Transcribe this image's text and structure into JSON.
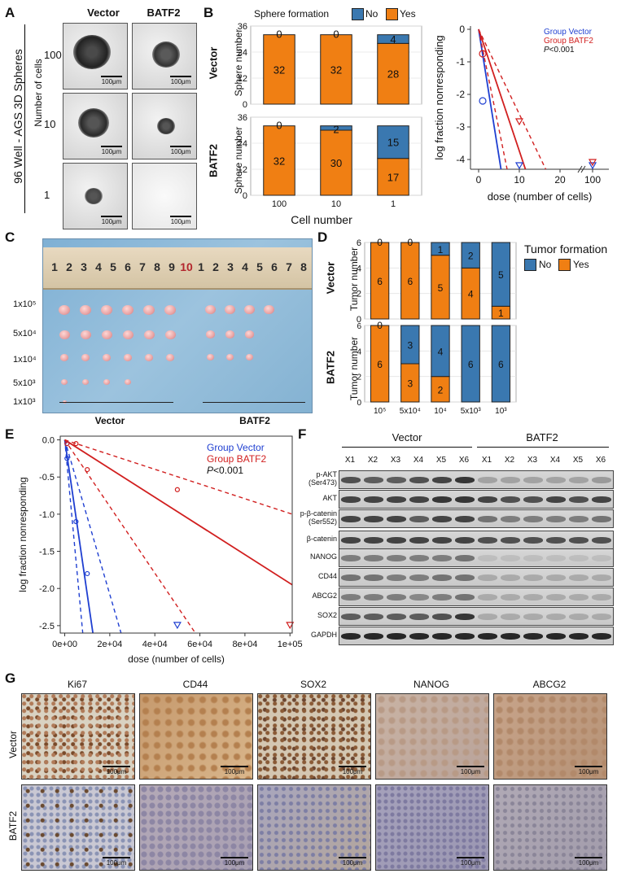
{
  "panels": {
    "A": {
      "letter": "A",
      "col_vector": "Vector",
      "col_batf2": "BATF2",
      "side_title": "96 Well - AGS 3D Spheres",
      "side_sub": "Number of cells",
      "rows": [
        "100",
        "10",
        "1"
      ],
      "scale": "100μm"
    },
    "B": {
      "letter": "B",
      "legend_title": "Sphere formation",
      "legend_no": "No",
      "legend_yes": "Yes",
      "ylabel": "Sphere number",
      "xlabel": "Cell number",
      "row_vector": "Vector",
      "row_batf2": "BATF2"
    },
    "C": {
      "letter": "C",
      "rows": [
        "1x10⁵",
        "5x10⁴",
        "1x10⁴",
        "5x10³",
        "1x10³"
      ],
      "group_vector": "Vector",
      "group_batf2": "BATF2",
      "ruler_ticks": [
        "1",
        "2",
        "3",
        "4",
        "5",
        "6",
        "7",
        "8",
        "9",
        "10",
        "1",
        "2",
        "3",
        "4",
        "5",
        "6",
        "7",
        "8"
      ]
    },
    "D": {
      "letter": "D",
      "legend_title": "Tumor formation",
      "legend_no": "No",
      "legend_yes": "Yes",
      "ylabel": "Tumor number",
      "row_vector": "Vector",
      "row_batf2": "BATF2"
    },
    "E": {
      "letter": "E"
    },
    "F": {
      "letter": "F",
      "group_vector": "Vector",
      "group_batf2": "BATF2",
      "lanes": [
        "X1",
        "X2",
        "X3",
        "X4",
        "X5",
        "X6",
        "X1",
        "X2",
        "X3",
        "X4",
        "X5",
        "X6"
      ],
      "proteins": [
        "p-AKT\n(Ser473)",
        "AKT",
        "p-β-catenin\n(Ser552)",
        "β-catenin",
        "NANOG",
        "CD44",
        "ABCG2",
        "SOX2",
        "GAPDH"
      ]
    },
    "G": {
      "letter": "G",
      "markers": [
        "Ki67",
        "CD44",
        "SOX2",
        "NANOG",
        "ABCG2"
      ],
      "row_vector": "Vector",
      "row_batf2": "BATF2",
      "scale": "100μm"
    }
  },
  "colors": {
    "no": "#3a78b0",
    "yes": "#f07f13",
    "vector_line": "#1f3fd1",
    "batf2_line": "#d11f1f"
  },
  "chart_data": [
    {
      "id": "B-vector",
      "type": "bar",
      "stacked": true,
      "title": "Vector",
      "categories": [
        "100",
        "10",
        "1"
      ],
      "series": [
        {
          "name": "Yes",
          "values": [
            32,
            32,
            28
          ]
        },
        {
          "name": "No",
          "values": [
            0,
            0,
            4
          ]
        }
      ],
      "ylabel": "Sphere number",
      "ylim": [
        0,
        36
      ],
      "yticks": [
        0,
        12,
        24,
        36
      ]
    },
    {
      "id": "B-batf2",
      "type": "bar",
      "stacked": true,
      "title": "BATF2",
      "categories": [
        "100",
        "10",
        "1"
      ],
      "series": [
        {
          "name": "Yes",
          "values": [
            32,
            30,
            17
          ]
        },
        {
          "name": "No",
          "values": [
            0,
            2,
            15
          ]
        }
      ],
      "xlabel": "Cell number",
      "ylabel": "Sphere number",
      "ylim": [
        0,
        36
      ],
      "yticks": [
        0,
        12,
        24,
        36
      ]
    },
    {
      "id": "B-elda",
      "type": "line",
      "xlabel": "dose (number of cells)",
      "ylabel": "log fraction nonresponding",
      "legend": [
        "Group Vector",
        "Group BATF2"
      ],
      "pvalue_label": "P",
      "pvalue": "<0.001",
      "xticks": [
        "0",
        "10",
        "20",
        "100"
      ],
      "yticks": [
        0,
        -1,
        -2,
        -3,
        -4
      ],
      "xlim": [
        0,
        100
      ],
      "ylim": [
        -4.3,
        0.1
      ],
      "vector_points": [
        {
          "x": 1,
          "y": -2.2
        },
        {
          "x": 10,
          "y": -4.2
        },
        {
          "x": 100,
          "y": -4.2
        }
      ],
      "batf2_points": [
        {
          "x": 1,
          "y": -0.75
        },
        {
          "x": 10,
          "y": -2.85
        },
        {
          "x": 100,
          "y": -4.1
        }
      ],
      "vector_fit": [
        {
          "x": 0,
          "y": 0
        },
        {
          "x": 5.5,
          "y": -4.3
        }
      ],
      "batf2_fit": [
        {
          "x": 0,
          "y": 0
        },
        {
          "x": 11.5,
          "y": -4.3
        }
      ],
      "batf2_ci_lo": [
        {
          "x": 0,
          "y": 0
        },
        {
          "x": 7,
          "y": -4.3
        }
      ],
      "batf2_ci_hi": [
        {
          "x": 0,
          "y": 0
        },
        {
          "x": 16.5,
          "y": -4.3
        }
      ]
    },
    {
      "id": "D-vector",
      "type": "bar",
      "stacked": true,
      "title": "Vector",
      "categories": [
        "10⁵",
        "5x10⁴",
        "10⁴",
        "5x10³",
        "10³"
      ],
      "series": [
        {
          "name": "Yes",
          "values": [
            6,
            6,
            5,
            4,
            1
          ]
        },
        {
          "name": "No",
          "values": [
            0,
            0,
            1,
            2,
            5
          ]
        }
      ],
      "ylabel": "Tumor number",
      "ylim": [
        0,
        6
      ],
      "yticks": [
        0,
        2,
        4,
        6
      ]
    },
    {
      "id": "D-batf2",
      "type": "bar",
      "stacked": true,
      "title": "BATF2",
      "categories": [
        "10⁵",
        "5x10⁴",
        "10⁴",
        "5x10³",
        "10³"
      ],
      "series": [
        {
          "name": "Yes",
          "values": [
            6,
            3,
            2,
            0,
            0
          ]
        },
        {
          "name": "No",
          "values": [
            0,
            3,
            4,
            6,
            6
          ]
        }
      ],
      "ylabel": "Tumor number",
      "ylim": [
        0,
        6
      ],
      "yticks": [
        0,
        2,
        4,
        6
      ]
    },
    {
      "id": "E-elda",
      "type": "line",
      "xlabel": "dose (number of cells)",
      "ylabel": "log fraction nonresponding",
      "legend": [
        "Group Vector",
        "Group BATF2"
      ],
      "pvalue_label": "P",
      "pvalue": "<0.001",
      "xticks": [
        "0e+00",
        "2e+04",
        "4e+04",
        "6e+04",
        "8e+04",
        "1e+05"
      ],
      "xtick_values": [
        0,
        20000,
        40000,
        60000,
        80000,
        100000
      ],
      "yticks": [
        "0.0",
        "-0.5",
        "-1.0",
        "-1.5",
        "-2.0",
        "-2.5"
      ],
      "ytick_values": [
        0,
        -0.5,
        -1.0,
        -1.5,
        -2.0,
        -2.5
      ],
      "xlim": [
        -2000,
        101000
      ],
      "ylim": [
        -2.6,
        0.05
      ],
      "vector_points": [
        {
          "x": 1000,
          "y": -0.05
        },
        {
          "x": 1000,
          "y": -0.25
        },
        {
          "x": 5000,
          "y": -1.1
        },
        {
          "x": 10000,
          "y": -1.8
        },
        {
          "x": 50000,
          "y": -2.5
        }
      ],
      "batf2_points": [
        {
          "x": 1000,
          "y": -0.05
        },
        {
          "x": 5000,
          "y": -0.05
        },
        {
          "x": 10000,
          "y": -0.4
        },
        {
          "x": 50000,
          "y": -0.67
        },
        {
          "x": 100000,
          "y": -2.5
        }
      ],
      "vector_fit": [
        {
          "x": 0,
          "y": 0
        },
        {
          "x": 12500,
          "y": -2.6
        }
      ],
      "vector_ci_lo": [
        {
          "x": 0,
          "y": 0
        },
        {
          "x": 8000,
          "y": -2.6
        }
      ],
      "vector_ci_hi": [
        {
          "x": 0,
          "y": 0
        },
        {
          "x": 25000,
          "y": -2.6
        }
      ],
      "batf2_fit": [
        {
          "x": 0,
          "y": 0
        },
        {
          "x": 101000,
          "y": -1.95
        }
      ],
      "batf2_ci_lo": [
        {
          "x": 0,
          "y": 0
        },
        {
          "x": 58000,
          "y": -2.6
        }
      ],
      "batf2_ci_hi": [
        {
          "x": 0,
          "y": 0
        },
        {
          "x": 101000,
          "y": -1.0
        }
      ]
    }
  ]
}
